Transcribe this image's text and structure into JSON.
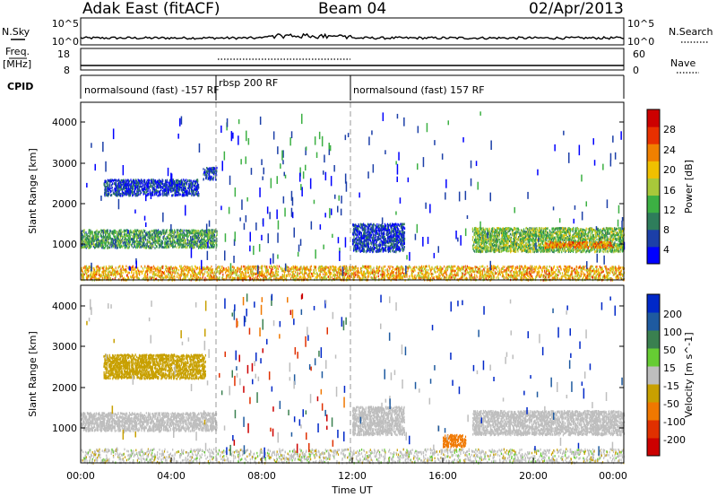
{
  "header": {
    "station": "Adak East (fitACF)",
    "beam": "Beam 04",
    "date": "02/Apr/2013"
  },
  "strips": {
    "nsky_label": "N.Sky",
    "nsearch_label": "N.Search",
    "freq_label": "Freq.",
    "freq_unit": "[MHz]",
    "nave_label": "Nave",
    "cpid_label": "CPID",
    "nsky_ticks": [
      "10^5",
      "10^0"
    ],
    "nsearch_ticks": [
      "10^5",
      "10^0"
    ],
    "freq_ticks": [
      "18",
      "8"
    ],
    "nave_ticks": [
      "60",
      "0"
    ]
  },
  "cpid_segments": [
    {
      "start_h": 0.0,
      "end_h": 6.0,
      "label": "normalsound (fast) -157 RF"
    },
    {
      "start_h": 6.0,
      "end_h": 12.0,
      "label": "rbsp 200 RF"
    },
    {
      "start_h": 12.0,
      "end_h": 24.0,
      "label": "normalsound (fast) 157 RF"
    }
  ],
  "x_axis": {
    "title": "Time UT",
    "tick_labels": [
      "00:00",
      "04:00",
      "08:00",
      "12:00",
      "16:00",
      "20:00",
      "00:00"
    ],
    "range_hours": [
      0,
      24
    ]
  },
  "power_panel": {
    "ylabel": "Slant Range [km]",
    "yticks": [
      "4000",
      "3000",
      "2000",
      "1000"
    ],
    "colorbar_title": "Power [dB]",
    "colorbar_ticks": [
      "28",
      "24",
      "20",
      "16",
      "12",
      "8",
      "4"
    ]
  },
  "velocity_panel": {
    "ylabel": "Slant Range [km]",
    "yticks": [
      "4000",
      "3000",
      "2000",
      "1000"
    ],
    "colorbar_title": "Velocity [m s^-1]",
    "colorbar_ticks": [
      "200",
      "100",
      "50",
      "15",
      "-15",
      "-50",
      "-100",
      "-200"
    ]
  },
  "colors": {
    "power_scale": [
      "#0000ff",
      "#1c3fa8",
      "#2e7d5b",
      "#3cb043",
      "#a8c83a",
      "#f0c000",
      "#f08000",
      "#e83000",
      "#cc0000"
    ],
    "velocity_scale": [
      "#0028c8",
      "#1e5aa0",
      "#3a8050",
      "#66cc33",
      "#bebebe",
      "#c8a000",
      "#f07800",
      "#e03000",
      "#cc0000"
    ]
  },
  "chart_data": [
    {
      "type": "heatmap",
      "title": "Adak East (fitACF) Beam 04",
      "xlabel": "Time UT",
      "ylabel": "Slant Range [km]",
      "xlim": [
        0,
        24
      ],
      "ylim": [
        180,
        4600
      ],
      "colorbar": "Power [dB]",
      "color_range": [
        2,
        30
      ],
      "regions": [
        {
          "t": [
            0.0,
            6.0
          ],
          "range_km": [
            1000,
            1450
          ],
          "power_db": 12
        },
        {
          "t": [
            1.0,
            5.2
          ],
          "range_km": [
            2300,
            2700
          ],
          "power_db": 6
        },
        {
          "t": [
            5.4,
            6.0
          ],
          "range_km": [
            2700,
            3000
          ],
          "power_db": 6
        },
        {
          "t": [
            12.0,
            14.3
          ],
          "range_km": [
            900,
            1600
          ],
          "power_db": 6
        },
        {
          "t": [
            17.3,
            24.0
          ],
          "range_km": [
            900,
            1500
          ],
          "power_db": 14
        },
        {
          "t": [
            20.5,
            23.5
          ],
          "range_km": [
            1000,
            1150
          ],
          "power_db": 22
        },
        {
          "t": [
            0.0,
            24.0
          ],
          "range_km": [
            200,
            550
          ],
          "power_db": 20
        }
      ]
    },
    {
      "type": "heatmap",
      "title": "Adak East (fitACF) Beam 04",
      "xlabel": "Time UT",
      "ylabel": "Slant Range [km]",
      "xlim": [
        0,
        24
      ],
      "ylim": [
        180,
        4600
      ],
      "colorbar": "Velocity [m s^-1]",
      "color_range": [
        -200,
        200
      ],
      "regions": [
        {
          "t": [
            0.0,
            6.0
          ],
          "range_km": [
            1000,
            1450
          ],
          "velocity": 0
        },
        {
          "t": [
            1.0,
            5.5
          ],
          "range_km": [
            2300,
            2900
          ],
          "velocity": -40
        },
        {
          "t": [
            12.0,
            14.3
          ],
          "range_km": [
            900,
            1600
          ],
          "velocity": 0
        },
        {
          "t": [
            17.3,
            24.0
          ],
          "range_km": [
            900,
            1500
          ],
          "velocity": 0
        },
        {
          "t": [
            16.0,
            17.0
          ],
          "range_km": [
            600,
            900
          ],
          "velocity": -80
        }
      ]
    }
  ]
}
